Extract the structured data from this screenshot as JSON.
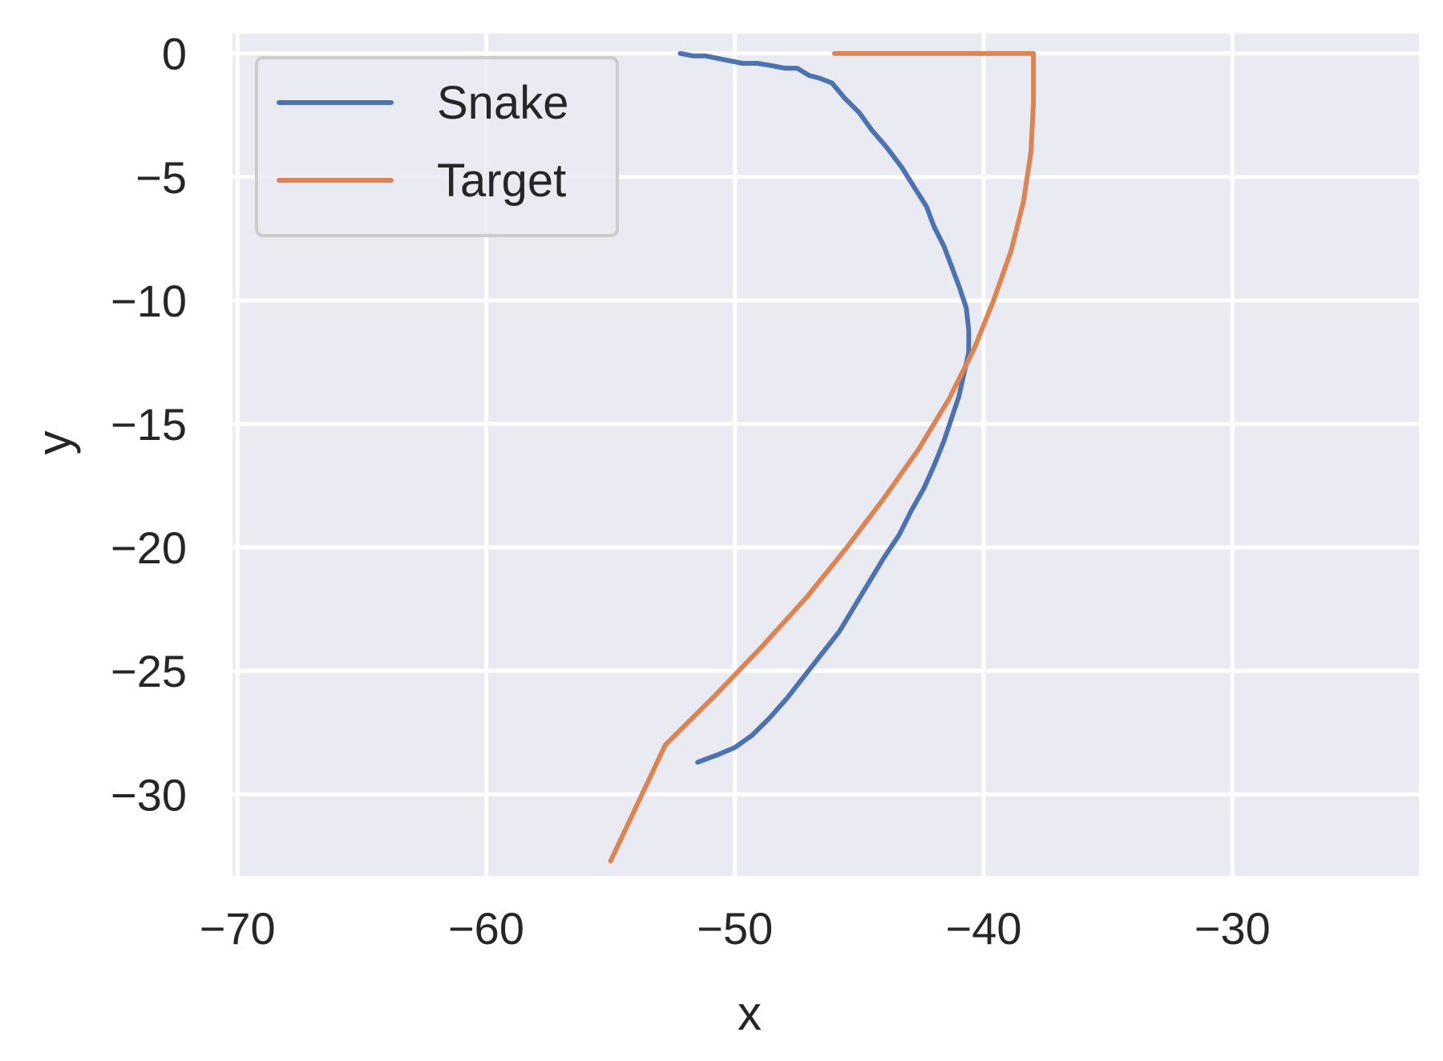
{
  "chart_data": {
    "type": "line",
    "title": "",
    "xlabel": "x",
    "ylabel": "y",
    "xlim": [
      -70.2,
      -22.5
    ],
    "ylim": [
      -33.3,
      0.8
    ],
    "xticks": [
      -70,
      -60,
      -50,
      -40,
      -30
    ],
    "xtick_labels": [
      "−70",
      "−60",
      "−50",
      "−40",
      "−30"
    ],
    "yticks": [
      0,
      -5,
      -10,
      -15,
      -20,
      -25,
      -30
    ],
    "ytick_labels": [
      "0",
      "−5",
      "−10",
      "−15",
      "−20",
      "−25",
      "−30"
    ],
    "grid": true,
    "background": "#eaeaf2",
    "legend": {
      "position": "top-left",
      "entries": [
        "Snake",
        "Target"
      ]
    },
    "series": [
      {
        "name": "Snake",
        "color": "#4c72b0",
        "x": [
          -52.2,
          -51.7,
          -51.2,
          -50.7,
          -50.2,
          -49.7,
          -49.1,
          -48.5,
          -48.0,
          -47.5,
          -47.0,
          -46.6,
          -46.1,
          -45.6,
          -45.0,
          -44.5,
          -43.9,
          -43.3,
          -42.8,
          -42.3,
          -42.0,
          -41.6,
          -41.3,
          -41.0,
          -40.7,
          -40.6,
          -40.6,
          -40.8,
          -41.0,
          -41.3,
          -41.6,
          -42.0,
          -42.4,
          -42.9,
          -43.4,
          -44.0,
          -44.6,
          -45.2,
          -45.8,
          -46.5,
          -47.2,
          -47.9,
          -48.6,
          -49.3,
          -50.0,
          -50.7,
          -51.5
        ],
        "y": [
          0.0,
          -0.1,
          -0.1,
          -0.2,
          -0.3,
          -0.4,
          -0.4,
          -0.5,
          -0.6,
          -0.6,
          -0.9,
          -1.0,
          -1.2,
          -1.8,
          -2.4,
          -3.1,
          -3.8,
          -4.6,
          -5.4,
          -6.2,
          -7.0,
          -7.8,
          -8.6,
          -9.4,
          -10.3,
          -11.2,
          -12.1,
          -13.0,
          -13.9,
          -14.8,
          -15.7,
          -16.7,
          -17.6,
          -18.5,
          -19.5,
          -20.4,
          -21.4,
          -22.4,
          -23.4,
          -24.3,
          -25.2,
          -26.1,
          -26.9,
          -27.6,
          -28.1,
          -28.4,
          -28.7
        ]
      },
      {
        "name": "Target",
        "color": "#dd8452",
        "x": [
          -46.0,
          -43.0,
          -40.0,
          -38.0,
          -38.0,
          -38.1,
          -38.4,
          -38.9,
          -39.6,
          -40.4,
          -41.4,
          -42.6,
          -44.0,
          -45.5,
          -47.1,
          -48.9,
          -50.8,
          -52.8,
          -55.0
        ],
        "y": [
          0.0,
          0.0,
          0.0,
          0.0,
          -2.0,
          -4.0,
          -6.0,
          -8.0,
          -10.0,
          -12.0,
          -14.0,
          -16.0,
          -18.0,
          -20.0,
          -22.0,
          -24.0,
          -26.0,
          -28.0,
          -32.7
        ]
      }
    ]
  }
}
